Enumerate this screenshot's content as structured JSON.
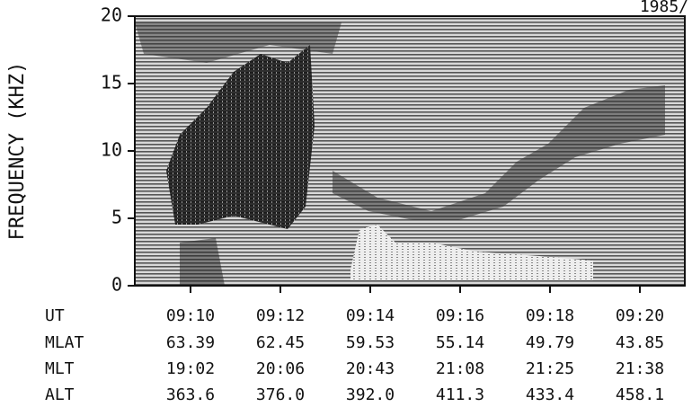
{
  "chart_data": {
    "type": "spectrogram",
    "title": "1985/",
    "y_label": "FREQUENCY (KHZ)",
    "x_label": "UT",
    "xlim": [
      8.76,
      21
    ],
    "xticks": [
      {
        "value": 10,
        "label": "09:10"
      },
      {
        "value": 12,
        "label": "09:12"
      },
      {
        "value": 14,
        "label": "09:14"
      },
      {
        "value": 16,
        "label": "09:16"
      },
      {
        "value": 18,
        "label": "09:18"
      },
      {
        "value": 20,
        "label": "09:20"
      }
    ],
    "ylim": [
      0,
      20
    ],
    "yticks": [
      0,
      5,
      10,
      15,
      20
    ],
    "ephemeris": [
      {
        "name": "MLAT",
        "values": [
          "63.39",
          "62.45",
          "59.53",
          "55.14",
          "49.79",
          "43.85"
        ]
      },
      {
        "name": "MLT",
        "values": [
          "19:02",
          "20:06",
          "20:43",
          "21:08",
          "21:25",
          "21:38"
        ]
      },
      {
        "name": "ALT",
        "values": [
          "363.6",
          "376.0",
          "392.0",
          "411.3",
          "433.4",
          "458.1"
        ]
      }
    ]
  }
}
